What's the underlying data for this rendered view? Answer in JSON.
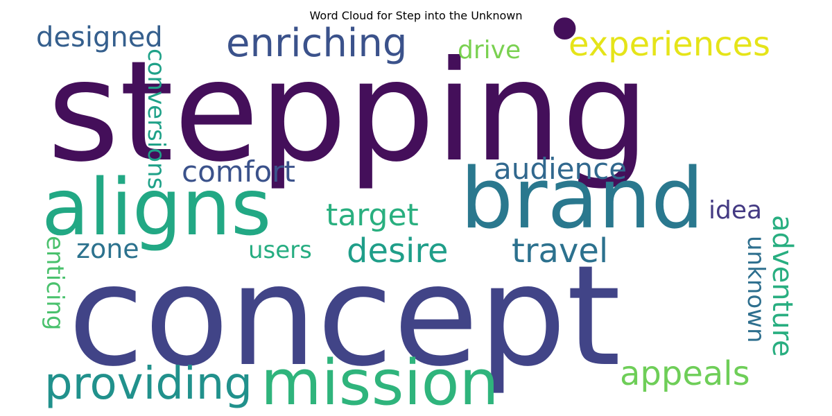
{
  "title": "Word Cloud for Step into the Unknown",
  "words": [
    {
      "key": "stepping",
      "text": "stepping",
      "color": "#440f5a"
    },
    {
      "key": "concept",
      "text": "concept",
      "color": "#414487"
    },
    {
      "key": "brand",
      "text": "brand",
      "color": "#2a788e"
    },
    {
      "key": "aligns",
      "text": "aligns",
      "color": "#22a884"
    },
    {
      "key": "mission",
      "text": "mission",
      "color": "#2fb47c"
    },
    {
      "key": "providing",
      "text": "providing",
      "color": "#21918c"
    },
    {
      "key": "enriching",
      "text": "enriching",
      "color": "#3b528b"
    },
    {
      "key": "experiences",
      "text": "experiences",
      "color": "#e5e419"
    },
    {
      "key": "designed",
      "text": "designed",
      "color": "#355f8d"
    },
    {
      "key": "drive",
      "text": "drive",
      "color": "#7ad151"
    },
    {
      "key": "comfort",
      "text": "comfort",
      "color": "#3b528b"
    },
    {
      "key": "audience",
      "text": "audience",
      "color": "#31688e"
    },
    {
      "key": "target",
      "text": "target",
      "color": "#29af7f"
    },
    {
      "key": "desire",
      "text": "desire",
      "color": "#1f9e89"
    },
    {
      "key": "travel",
      "text": "travel",
      "color": "#2c718e"
    },
    {
      "key": "zone",
      "text": "zone",
      "color": "#2c728e"
    },
    {
      "key": "users",
      "text": "users",
      "color": "#26ad81"
    },
    {
      "key": "idea",
      "text": "idea",
      "color": "#443a83"
    },
    {
      "key": "appeals",
      "text": "appeals",
      "color": "#6ece58"
    },
    {
      "key": "conversions",
      "text": "conversions",
      "color": "#1fa188"
    },
    {
      "key": "enticing",
      "text": "enticing",
      "color": "#4ac16d"
    },
    {
      "key": "unknown",
      "text": "unknown",
      "color": "#2e6f8e"
    },
    {
      "key": "adventure",
      "text": "adventure",
      "color": "#28ae80"
    },
    {
      "key": "dot",
      "text": "•",
      "color": "#440f5a"
    }
  ]
}
